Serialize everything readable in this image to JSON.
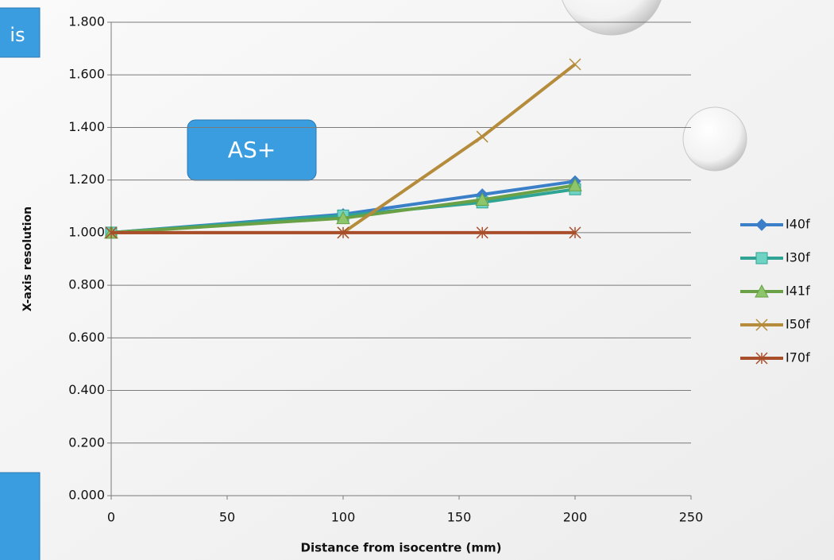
{
  "chart_data": {
    "type": "line",
    "x_label": "Distance from isocentre (mm)",
    "y_label": "X-axis resolution",
    "annotations": [
      "is",
      "AS+"
    ],
    "x": [
      0,
      100,
      160,
      200
    ],
    "series": [
      {
        "name": "I40f",
        "color": "#3b7fc8",
        "marker": "diamond",
        "values": [
          1.0,
          1.07,
          1.145,
          1.195
        ]
      },
      {
        "name": "I30f",
        "color": "#2fa394",
        "marker": "square",
        "values": [
          1.0,
          1.065,
          1.115,
          1.165
        ]
      },
      {
        "name": "I41f",
        "color": "#6aa046",
        "marker": "triangle",
        "values": [
          1.0,
          1.055,
          1.125,
          1.18
        ]
      },
      {
        "name": "I50f",
        "color": "#b48c3c",
        "marker": "x",
        "values": [
          1.0,
          1.0,
          1.365,
          1.64
        ]
      },
      {
        "name": "I70f",
        "color": "#a84e2a",
        "marker": "star",
        "values": [
          1.0,
          1.0,
          1.0,
          1.0
        ]
      }
    ],
    "xlim": [
      0,
      250
    ],
    "xticks": [
      0,
      50,
      100,
      150,
      200,
      250
    ],
    "ylim": [
      0,
      1.8
    ],
    "yticks": [
      {
        "value": 0,
        "label": "0.000"
      },
      {
        "value": 0.2,
        "label": "0.200"
      },
      {
        "value": 0.4,
        "label": "0.400"
      },
      {
        "value": 0.6,
        "label": "0.600"
      },
      {
        "value": 0.8,
        "label": "0.800"
      },
      {
        "value": 1.0,
        "label": "1.000"
      },
      {
        "value": 1.2,
        "label": "1.200"
      },
      {
        "value": 1.4,
        "label": "1.400"
      },
      {
        "value": 1.6,
        "label": "1.600"
      },
      {
        "value": 1.8,
        "label": "1.800"
      }
    ],
    "grid": true,
    "legend": "right"
  }
}
